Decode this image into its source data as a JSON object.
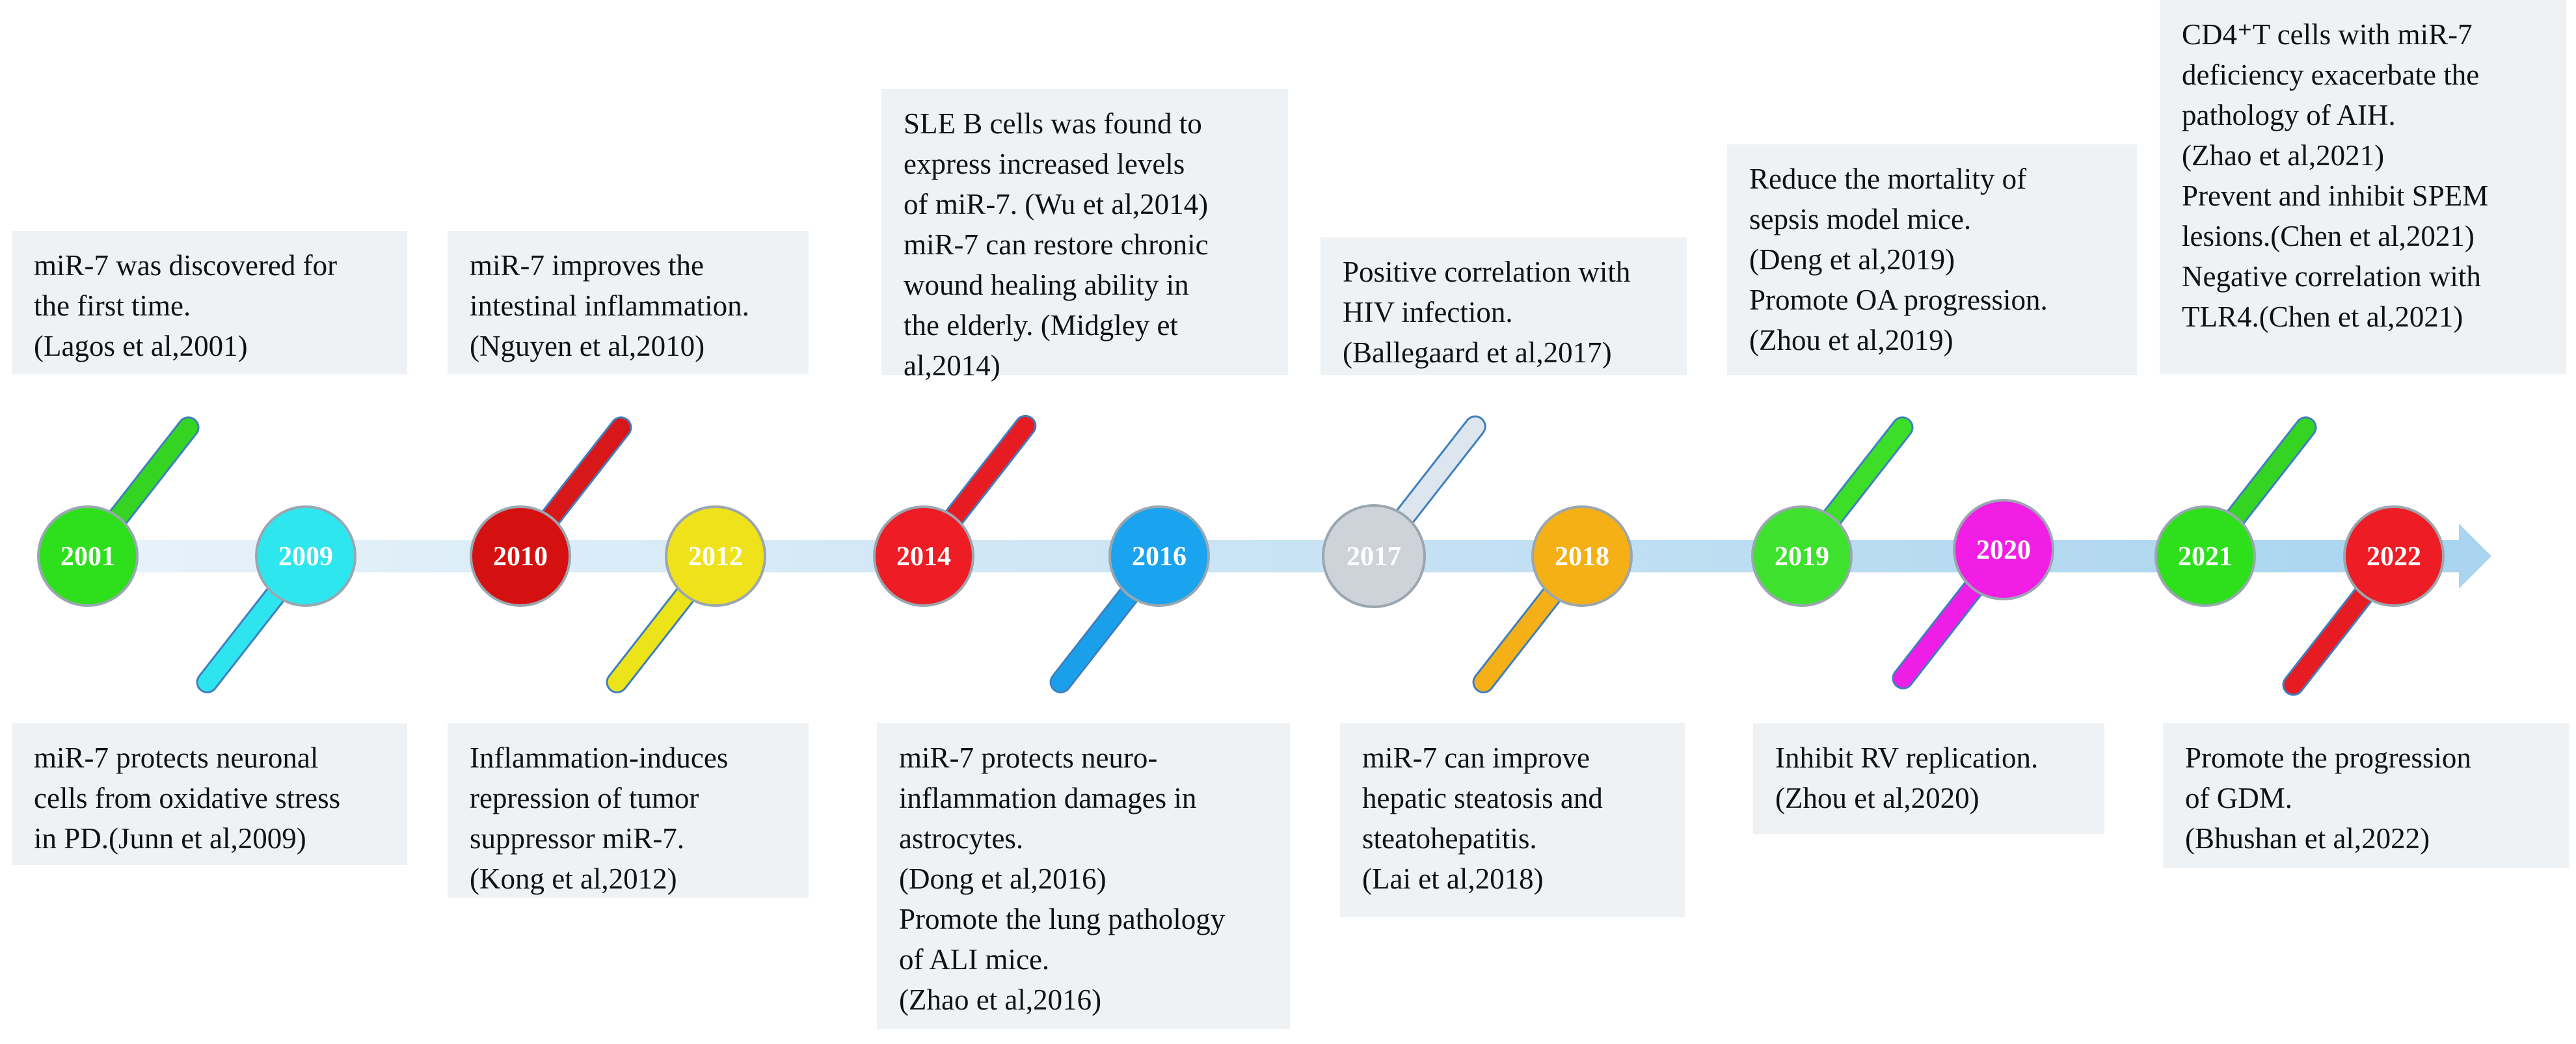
{
  "events": [
    {
      "year": "2001",
      "color": "#2ee01c",
      "stick": "#35d423",
      "lines": [
        "miR-7 was discovered for",
        "the first time.",
        "(Lagos et al,2001)"
      ]
    },
    {
      "year": "2009",
      "color": "#2ee6ee",
      "stick": "#2ee4ee",
      "lines": [
        "miR-7 protects neuronal",
        "cells from oxidative stress",
        "in PD.(Junn et al,2009)"
      ]
    },
    {
      "year": "2010",
      "color": "#d51010",
      "stick": "#d81818",
      "lines": [
        "miR-7 improves the",
        "intestinal inflammation.",
        "(Nguyen et al,2010)"
      ]
    },
    {
      "year": "2012",
      "color": "#efe21a",
      "stick": "#ece418",
      "lines": [
        "Inflammation-induces",
        "repression of tumor",
        "suppressor miR-7.",
        "(Kong et al,2012)"
      ]
    },
    {
      "year": "2014",
      "color": "#ee1c24",
      "stick": "#e61c22",
      "lines": [
        "SLE B cells was found to",
        "express increased levels",
        "of miR-7. (Wu et al,2014)",
        "miR-7 can restore chronic",
        "wound healing ability in",
        "the elderly. (Midgley et",
        "al,2014)"
      ]
    },
    {
      "year": "2016",
      "color": "#1aa3ee",
      "stick": "#1aa0ea",
      "lines": [
        "miR-7 protects neuro-",
        "inflammation damages in",
        "astrocytes.",
        "(Dong et al,2016)",
        "Promote the lung pathology",
        "of ALI mice.",
        "(Zhao et al,2016)"
      ]
    },
    {
      "year": "2017",
      "color": "#cdd3d8",
      "stick": "#dde6ee",
      "lines": [
        "Positive correlation with",
        "HIV infection.",
        "(Ballegaard et al,2017)"
      ]
    },
    {
      "year": "2018",
      "color": "#f4b014",
      "stick": "#f4b016",
      "lines": [
        "miR-7 can improve",
        "hepatic steatosis and",
        "steatohepatitis.",
        "(Lai et al,2018)"
      ]
    },
    {
      "year": "2019",
      "color": "#3ee22e",
      "stick": "#3cde28",
      "lines": [
        "Reduce the mortality of",
        "sepsis model mice.",
        "(Deng et al,2019)",
        "Promote OA progression.",
        "(Zhou et al,2019)"
      ]
    },
    {
      "year": "2020",
      "color": "#f21ee6",
      "stick": "#ee1ee6",
      "lines": [
        "Inhibit RV replication.",
        "(Zhou et al,2020)"
      ]
    },
    {
      "year": "2021",
      "color": "#2ee01c",
      "stick": "#35d423",
      "lines": [
        "CD4⁺T cells with miR-7",
        "deficiency exacerbate the",
        "pathology of AIH.",
        "(Zhao et al,2021)",
        "Prevent and inhibit SPEM",
        "lesions.(Chen et al,2021)",
        "Negative correlation with",
        "TLR4.(Chen et al,2021)"
      ]
    },
    {
      "year": "2022",
      "color": "#ee1c24",
      "stick": "#e61c22",
      "lines": [
        "Promote the progression",
        "of GDM.",
        "(Bhushan et al,2022)"
      ]
    }
  ]
}
